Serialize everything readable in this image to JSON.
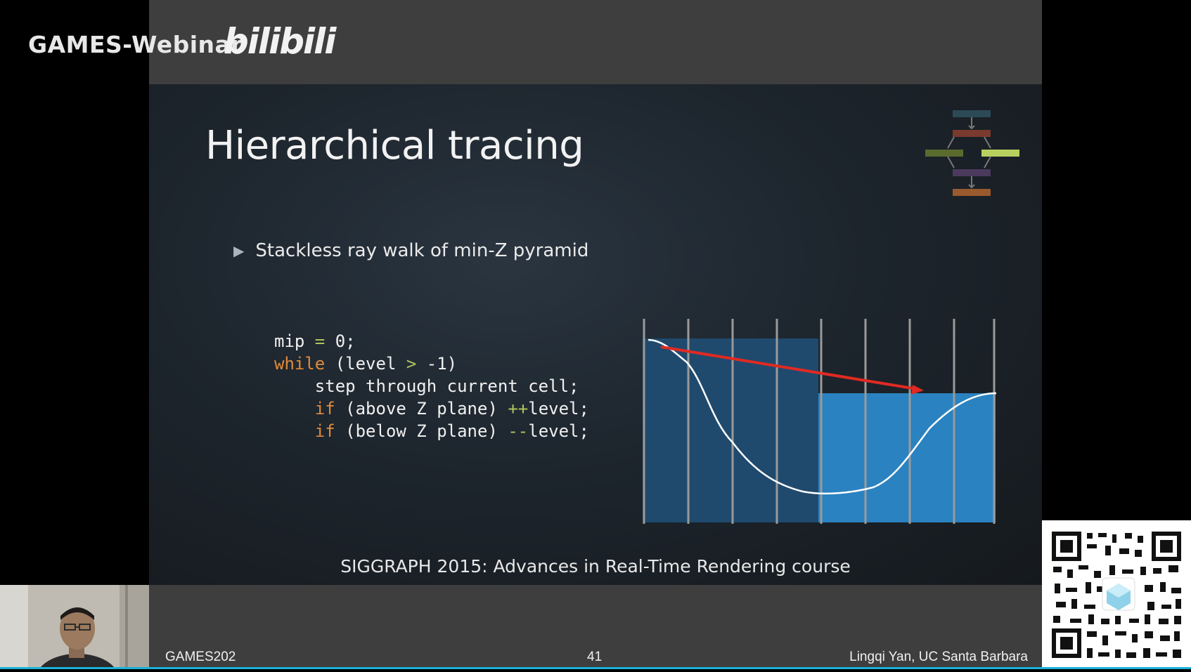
{
  "header": {
    "brand": "GAMES-Webinar",
    "logo": "bilibili"
  },
  "slide": {
    "title": "Hierarchical tracing",
    "bullet": "Stackless ray walk of min-Z pyramid",
    "code": [
      [
        {
          "t": "mip ",
          "c": "plain"
        },
        {
          "t": "=",
          "c": "op"
        },
        {
          "t": " 0;",
          "c": "plain"
        }
      ],
      [
        {
          "t": "while",
          "c": "kw"
        },
        {
          "t": " (level ",
          "c": "plain"
        },
        {
          "t": ">",
          "c": "op"
        },
        {
          "t": " -1)",
          "c": "plain"
        }
      ],
      [
        {
          "t": "    step through current cell;",
          "c": "plain"
        }
      ],
      [
        {
          "t": "    ",
          "c": "plain"
        },
        {
          "t": "if",
          "c": "kw"
        },
        {
          "t": " (above Z plane) ",
          "c": "plain"
        },
        {
          "t": "++",
          "c": "op"
        },
        {
          "t": "level;",
          "c": "plain"
        }
      ],
      [
        {
          "t": "    ",
          "c": "plain"
        },
        {
          "t": "if",
          "c": "kw"
        },
        {
          "t": " (below Z plane) ",
          "c": "plain"
        },
        {
          "t": "--",
          "c": "op"
        },
        {
          "t": "level;",
          "c": "plain"
        }
      ]
    ],
    "citation": "SIGGRAPH 2015: Advances in Real-Time Rendering course"
  },
  "footer": {
    "course": "GAMES202",
    "page": "41",
    "author": "Lingqi Yan, UC Santa Barbara"
  },
  "colors": {
    "keyword": "#e08a3a",
    "operator": "#b0c45a",
    "ray": "#e02a22",
    "cell_dark": "#1f4a6e",
    "cell_light": "#2a82c0",
    "progress": "#1ab0d8"
  },
  "icons": {
    "bullet": "triangle-right-icon",
    "nav": "pipeline-diagram-icon",
    "qr": "qr-code-icon"
  }
}
